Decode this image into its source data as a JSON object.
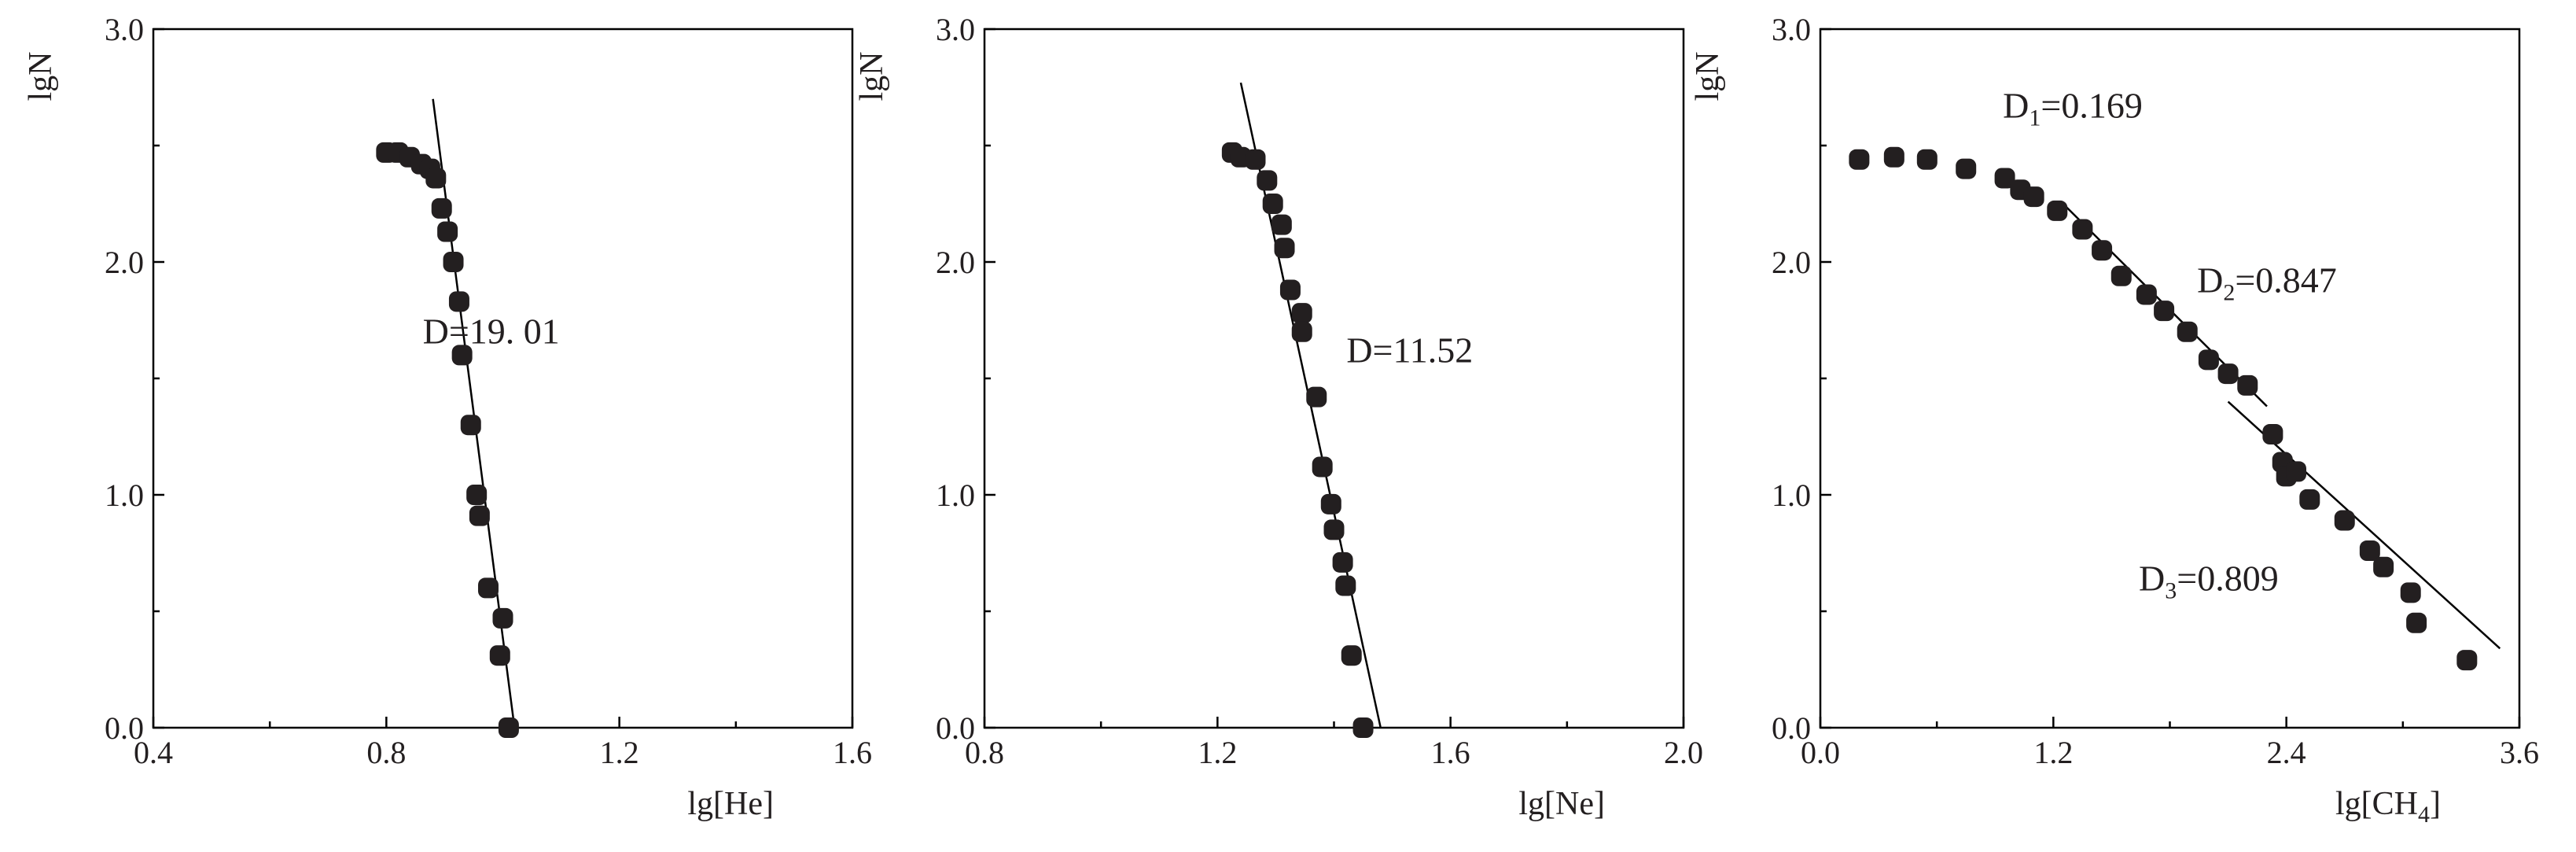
{
  "chart_data": [
    {
      "type": "scatter",
      "xlabel": "lg[He]",
      "ylabel": "lgN",
      "xlim": [
        0.4,
        1.6
      ],
      "ylim": [
        0.0,
        3.0
      ],
      "xticks": [
        "0.4",
        "0.8",
        "1.2",
        "1.6"
      ],
      "yticks": [
        "0.0",
        "1.0",
        "2.0",
        "3.0"
      ],
      "annotations": [
        {
          "text": "D=19. 01",
          "x": 0.98,
          "y": 1.65
        }
      ],
      "points": [
        {
          "x": 0.8,
          "y": 2.47
        },
        {
          "x": 0.82,
          "y": 2.47
        },
        {
          "x": 0.84,
          "y": 2.45
        },
        {
          "x": 0.86,
          "y": 2.42
        },
        {
          "x": 0.875,
          "y": 2.4
        },
        {
          "x": 0.885,
          "y": 2.36
        },
        {
          "x": 0.895,
          "y": 2.23
        },
        {
          "x": 0.905,
          "y": 2.13
        },
        {
          "x": 0.915,
          "y": 2.0
        },
        {
          "x": 0.925,
          "y": 1.83
        },
        {
          "x": 0.93,
          "y": 1.6
        },
        {
          "x": 0.945,
          "y": 1.3
        },
        {
          "x": 0.955,
          "y": 1.0
        },
        {
          "x": 0.96,
          "y": 0.91
        },
        {
          "x": 0.975,
          "y": 0.6
        },
        {
          "x": 1.0,
          "y": 0.47
        },
        {
          "x": 0.995,
          "y": 0.31
        },
        {
          "x": 1.01,
          "y": 0.0
        }
      ],
      "fit_lines": [
        {
          "label": "D=19. 01",
          "x1": 0.88,
          "y1": 2.7,
          "x2": 1.02,
          "y2": 0.0
        }
      ]
    },
    {
      "type": "scatter",
      "xlabel": "lg[Ne]",
      "ylabel": "lgN",
      "xlim": [
        0.8,
        2.0
      ],
      "ylim": [
        0.0,
        3.0
      ],
      "xticks": [
        "0.8",
        "1.2",
        "1.6",
        "2.0"
      ],
      "yticks": [
        "0.0",
        "1.0",
        "2.0",
        "3.0"
      ],
      "annotations": [
        {
          "text": "D=11.52",
          "x": 1.53,
          "y": 1.57
        }
      ],
      "points": [
        {
          "x": 1.225,
          "y": 2.47
        },
        {
          "x": 1.24,
          "y": 2.45
        },
        {
          "x": 1.265,
          "y": 2.44
        },
        {
          "x": 1.285,
          "y": 2.35
        },
        {
          "x": 1.295,
          "y": 2.25
        },
        {
          "x": 1.31,
          "y": 2.16
        },
        {
          "x": 1.315,
          "y": 2.06
        },
        {
          "x": 1.325,
          "y": 1.88
        },
        {
          "x": 1.345,
          "y": 1.78
        },
        {
          "x": 1.345,
          "y": 1.7
        },
        {
          "x": 1.37,
          "y": 1.42
        },
        {
          "x": 1.38,
          "y": 1.12
        },
        {
          "x": 1.395,
          "y": 0.96
        },
        {
          "x": 1.4,
          "y": 0.85
        },
        {
          "x": 1.415,
          "y": 0.71
        },
        {
          "x": 1.42,
          "y": 0.61
        },
        {
          "x": 1.43,
          "y": 0.31
        },
        {
          "x": 1.45,
          "y": 0.0
        }
      ],
      "fit_lines": [
        {
          "label": "D=11.52",
          "x1": 1.24,
          "y1": 2.77,
          "x2": 1.48,
          "y2": 0.0
        }
      ]
    },
    {
      "type": "scatter",
      "xlabel": "lg[CH4]",
      "ylabel": "lgN",
      "xlim": [
        0.0,
        3.6
      ],
      "ylim": [
        0.0,
        3.0
      ],
      "xticks": [
        "0.0",
        "1.2",
        "2.4",
        "3.6"
      ],
      "yticks": [
        "0.0",
        "1.0",
        "2.0",
        "3.0"
      ],
      "annotations": [
        {
          "text": "D",
          "sub": "1",
          "value": "=0.169",
          "x": 1.3,
          "y": 2.62
        },
        {
          "text": "D",
          "sub": "2",
          "value": "=0.847",
          "x": 2.3,
          "y": 1.87
        },
        {
          "text": "D",
          "sub": "3",
          "value": "=0.809",
          "x": 2.0,
          "y": 0.59
        }
      ],
      "points": [
        {
          "x": 0.2,
          "y": 2.44
        },
        {
          "x": 0.38,
          "y": 2.45
        },
        {
          "x": 0.55,
          "y": 2.44
        },
        {
          "x": 0.75,
          "y": 2.4
        },
        {
          "x": 0.95,
          "y": 2.36
        },
        {
          "x": 1.03,
          "y": 2.31
        },
        {
          "x": 1.1,
          "y": 2.28
        },
        {
          "x": 1.22,
          "y": 2.22
        },
        {
          "x": 1.35,
          "y": 2.14
        },
        {
          "x": 1.45,
          "y": 2.05
        },
        {
          "x": 1.55,
          "y": 1.94
        },
        {
          "x": 1.68,
          "y": 1.86
        },
        {
          "x": 1.77,
          "y": 1.79
        },
        {
          "x": 1.89,
          "y": 1.7
        },
        {
          "x": 2.0,
          "y": 1.58
        },
        {
          "x": 2.1,
          "y": 1.52
        },
        {
          "x": 2.2,
          "y": 1.47
        },
        {
          "x": 2.33,
          "y": 1.26
        },
        {
          "x": 2.38,
          "y": 1.14
        },
        {
          "x": 2.4,
          "y": 1.08
        },
        {
          "x": 2.45,
          "y": 1.1
        },
        {
          "x": 2.52,
          "y": 0.98
        },
        {
          "x": 2.7,
          "y": 0.89
        },
        {
          "x": 2.83,
          "y": 0.76
        },
        {
          "x": 2.9,
          "y": 0.69
        },
        {
          "x": 3.04,
          "y": 0.58
        },
        {
          "x": 3.07,
          "y": 0.45
        },
        {
          "x": 3.33,
          "y": 0.29
        }
      ],
      "fit_lines": [
        {
          "label": "D2",
          "x1": 1.25,
          "y1": 2.25,
          "x2": 2.3,
          "y2": 1.38
        },
        {
          "label": "D3",
          "x1": 2.1,
          "y1": 1.4,
          "x2": 3.5,
          "y2": 0.34
        }
      ]
    }
  ]
}
